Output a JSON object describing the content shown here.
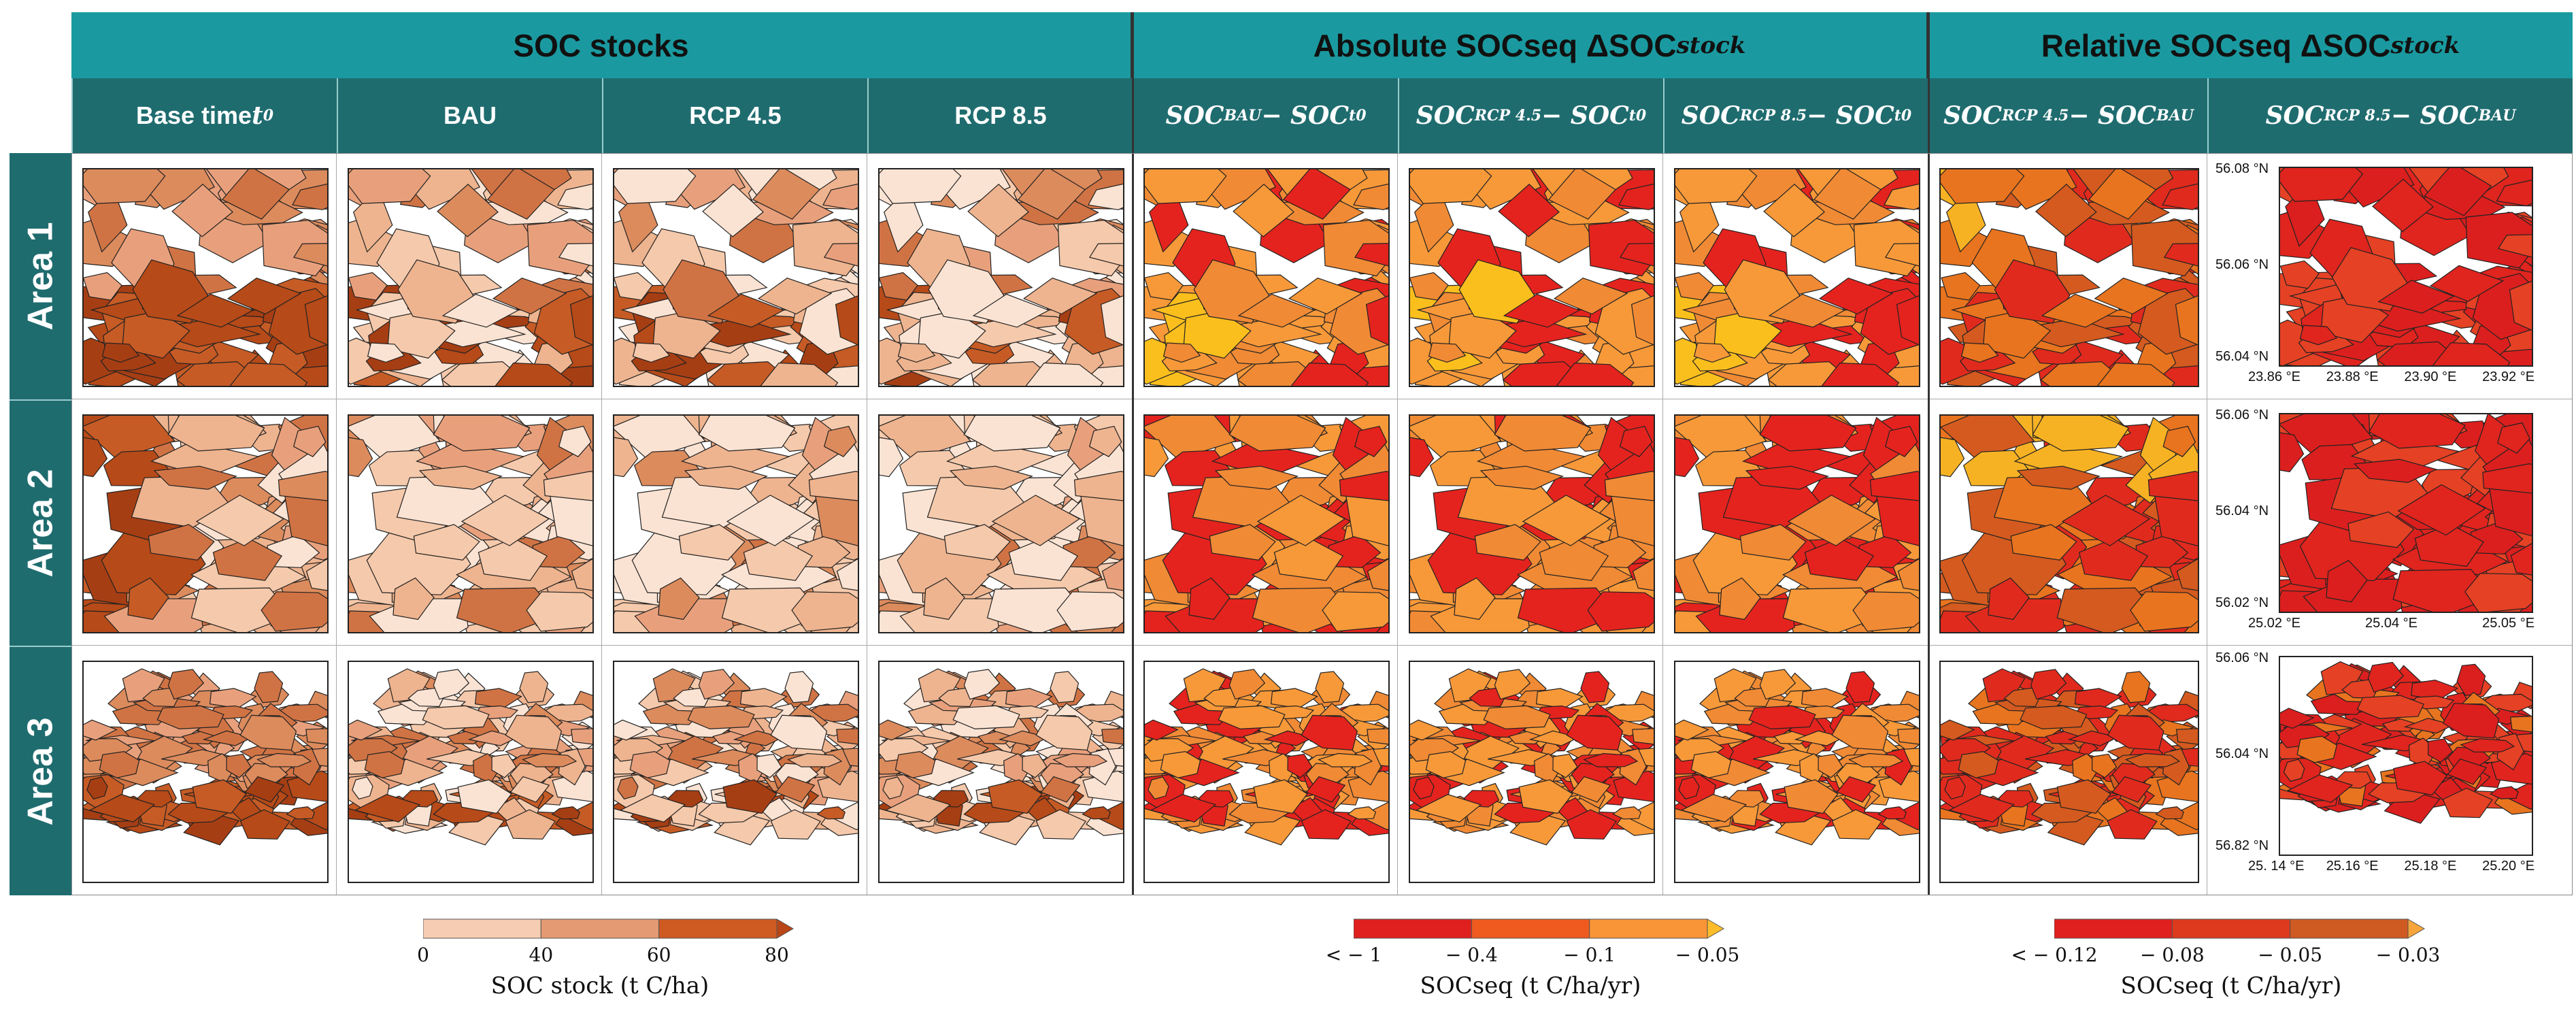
{
  "group_headers": [
    {
      "text": "SOC stocks"
    },
    {
      "text": "Absolute SOCseq ΔSOC",
      "sub": "stock"
    },
    {
      "text": "Relative SOCseq ΔSOC",
      "sub": "stock"
    }
  ],
  "column_headers": [
    {
      "plain": "Base time ",
      "math": "t",
      "sub": "0"
    },
    {
      "plain": "BAU"
    },
    {
      "plain": "RCP 4.5"
    },
    {
      "plain": "RCP 8.5"
    },
    {
      "math": "SOC",
      "sub": "BAU",
      "mid": " − SOC",
      "sub2": "t0"
    },
    {
      "math": "SOC",
      "sub": "RCP 4.5",
      "mid": " − SOC",
      "sub2": "t0"
    },
    {
      "math": "SOC",
      "sub": "RCP 8.5",
      "mid": " − SOC",
      "sub2": "t0"
    },
    {
      "math": "SOC",
      "sub": "RCP 4.5",
      "mid": " − SOC",
      "sub2": "BAU"
    },
    {
      "math": "SOC",
      "sub": "RCP 8.5",
      "mid": " − SOC",
      "sub2": "BAU"
    }
  ],
  "row_headers": [
    "Area 1",
    "Area 2",
    "Area 3"
  ],
  "coordinates": [
    {
      "lat": [
        "56.08 °N",
        "56.06 °N",
        "56.04 °N"
      ],
      "lon": [
        "23.86 °E",
        "23.88 °E",
        "23.90 °E",
        "23.92 °E"
      ]
    },
    {
      "lat": [
        "56.06 °N",
        "56.04 °N",
        "56.02 °N"
      ],
      "lon": [
        "25.02 °E",
        "25.04 °E",
        "25.05 °E"
      ]
    },
    {
      "lat": [
        "56.06 °N",
        "56.04 °N",
        "56.82 °N"
      ],
      "lon": [
        "25. 14 °E",
        "25.16 °E",
        "25.18 °E",
        "25.20 °E"
      ]
    }
  ],
  "colorbars": [
    {
      "label": "SOC stock (t C/ha)",
      "ticks": [
        "0",
        "40",
        "60",
        "80"
      ],
      "colors": [
        "#f6cdb2",
        "#e49a72",
        "#cf5a22"
      ],
      "arrow_color": "#b84618",
      "arrow_side": "right"
    },
    {
      "label": "SOCseq (t C/ha/yr)",
      "ticks": [
        "< − 1",
        "− 0.4",
        "− 0.1",
        "− 0.05"
      ],
      "colors": [
        "#e0201e",
        "#ef5a1f",
        "#f99437"
      ],
      "arrow_color": "#fdbd2b",
      "arrow_side": "right"
    },
    {
      "label": "SOCseq (t C/ha/yr)",
      "ticks": [
        "< − 0.12",
        "− 0.08",
        "− 0.05",
        "− 0.03"
      ],
      "colors": [
        "#e0201e",
        "#dd3a1e",
        "#cf5a22"
      ],
      "arrow_color": "#f6a53a",
      "arrow_side": "right"
    }
  ],
  "palettes": {
    "stock_light": [
      "#fbe3d3",
      "#f5c9ab",
      "#eeb48f"
    ],
    "stock_mid": [
      "#e8a07c",
      "#dc8b5d",
      "#d07344"
    ],
    "stock_dark": [
      "#c65b25",
      "#b64a18",
      "#a63e14"
    ],
    "abs": [
      "#f08a35",
      "#f79939",
      "#e4231e",
      "#fbbf1d"
    ],
    "rel1": [
      "#e8741f",
      "#d45a1f",
      "#e02a1e",
      "#f7b224"
    ],
    "rel2": [
      "#e0241e",
      "#db1f1e",
      "#e54124"
    ]
  }
}
